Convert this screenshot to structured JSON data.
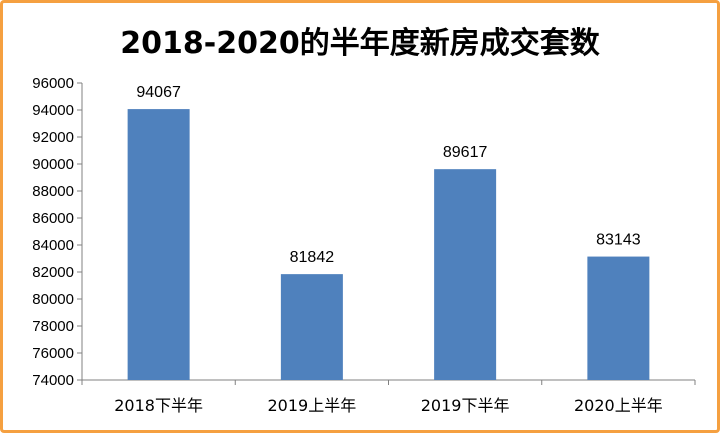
{
  "chart_data": {
    "type": "bar",
    "title": "2018-2020的半年度新房成交套数",
    "categories": [
      "2018下半年",
      "2019上半年",
      "2019下半年",
      "2020上半年"
    ],
    "values": [
      94067,
      81842,
      89617,
      83143
    ],
    "ylim": [
      74000,
      96000
    ],
    "yticks": [
      74000,
      76000,
      78000,
      80000,
      82000,
      84000,
      86000,
      88000,
      90000,
      92000,
      94000,
      96000
    ],
    "grid": false,
    "legend": "none",
    "bar_color": "#4f81bd",
    "data_labels": [
      "94067",
      "81842",
      "89617",
      "83143"
    ]
  }
}
